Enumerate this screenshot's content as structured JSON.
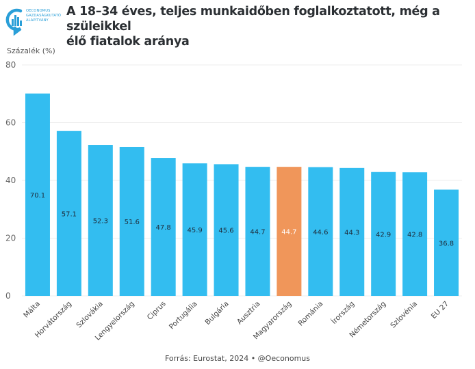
{
  "logo": {
    "icon": "oeconomus-logo-icon",
    "lines": [
      "OECONOMUS",
      "GAZDASÁGKUTATÓ",
      "ALAPÍTVÁNY"
    ]
  },
  "header": {
    "title_line1": "A 18–34 éves, teljes munkaidőben foglalkoztatott, még a szüleikkel",
    "title_line2": "élő fiatalok aránya"
  },
  "footer": {
    "source": "Forrás: Eurostat, 2024 • @Oeconomus"
  },
  "colors": {
    "bar": "#33bdf0",
    "highlight": "#f0965a",
    "label_dark": "#1d2b3a",
    "label_light": "#ffffff"
  },
  "chart_data": {
    "type": "bar",
    "title": "A 18–34 éves, teljes munkaidőben foglalkoztatott, még a szüleikkel élő fiatalok aránya",
    "xlabel": "",
    "ylabel": "Százalék (%)",
    "ylim": [
      0,
      80
    ],
    "yticks": [
      0,
      20,
      40,
      60,
      80
    ],
    "grid": true,
    "categories": [
      "Málta",
      "Horvátország",
      "Szlovákia",
      "Lengyelország",
      "Ciprus",
      "Portugália",
      "Bulgária",
      "Ausztria",
      "Magyarország",
      "Románia",
      "Írország",
      "Németország",
      "Szlovénia",
      "EU 27"
    ],
    "values": [
      70.1,
      57.1,
      52.3,
      51.6,
      47.8,
      45.9,
      45.6,
      44.7,
      44.7,
      44.6,
      44.3,
      42.9,
      42.8,
      36.8
    ],
    "labels": [
      "70.1",
      "57.1",
      "52.3",
      "51.6",
      "47.8",
      "45.9",
      "45.6",
      "44.7",
      "44.7",
      "44.6",
      "44.3",
      "42.9",
      "42.8",
      "36.8"
    ],
    "highlight": "Magyarország",
    "source": "Forrás: Eurostat, 2024 • @Oeconomus"
  }
}
